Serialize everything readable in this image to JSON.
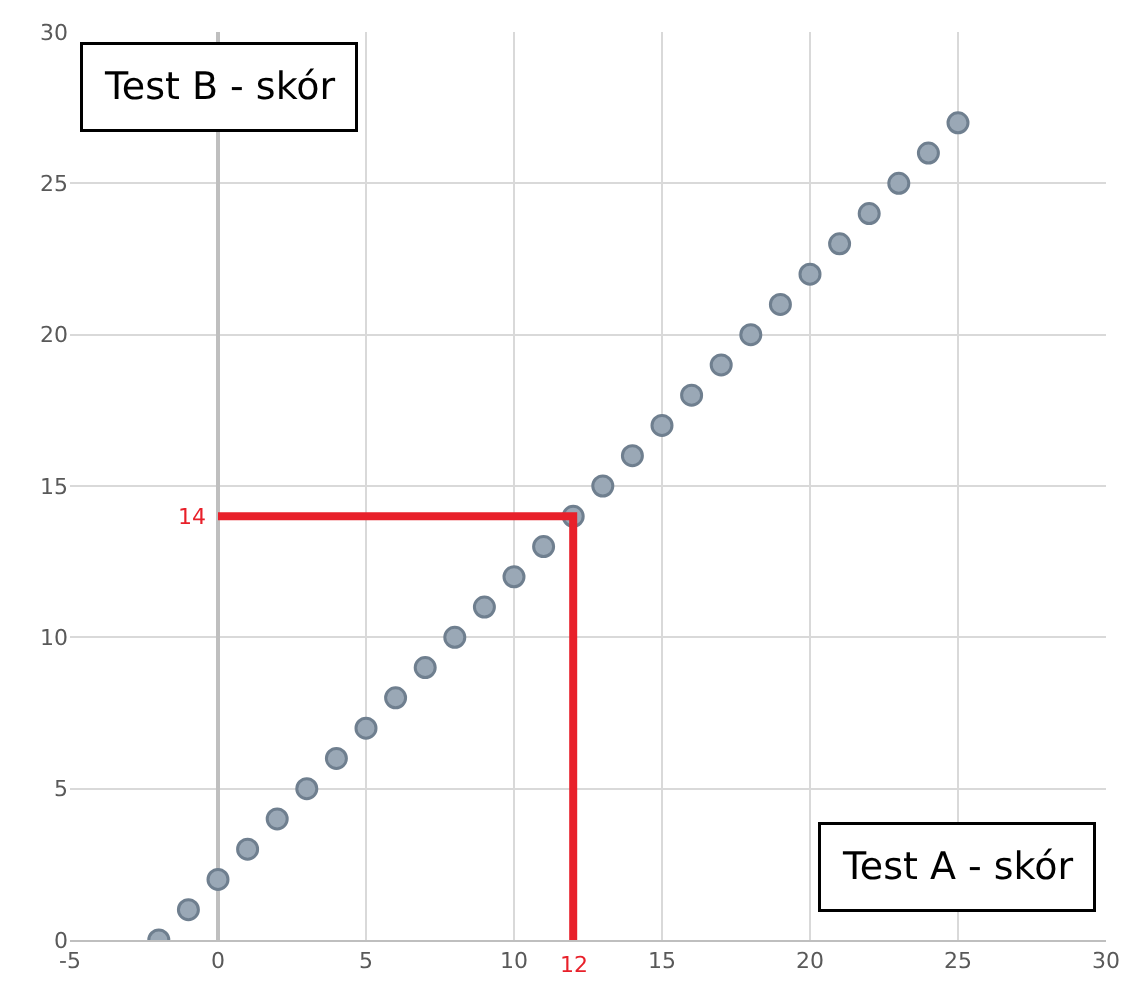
{
  "chart_data": {
    "type": "scatter",
    "xlabel": "Test A - skór",
    "ylabel": "Test B - skór",
    "xlim": [
      -5,
      30
    ],
    "xticks": [
      -5,
      0,
      5,
      10,
      15,
      20,
      25,
      30
    ],
    "ylim": [
      0,
      30
    ],
    "yticks": [
      0,
      5,
      10,
      15,
      20,
      25,
      30
    ],
    "grid": true,
    "legend": false,
    "marker": "circle",
    "series": [
      {
        "color": "#9aa8b6",
        "x": [
          -2,
          -1,
          0,
          1,
          2,
          3,
          4,
          5,
          6,
          7,
          8,
          9,
          10,
          11,
          12,
          13,
          14,
          15,
          16,
          17,
          18,
          19,
          20,
          21,
          22,
          23,
          24,
          25
        ],
        "values": [
          0,
          1,
          2,
          3,
          4,
          5,
          6,
          7,
          8,
          9,
          10,
          11,
          12,
          13,
          14,
          15,
          16,
          17,
          18,
          19,
          20,
          21,
          22,
          23,
          24,
          25,
          26,
          27
        ]
      },
      {
        "type": "line",
        "marker": "none",
        "color": "#e8202a",
        "x": [
          0,
          12,
          12
        ],
        "values": [
          14,
          14,
          0
        ]
      }
    ],
    "annotations": [
      {
        "text": "14",
        "x": 0,
        "y": 14
      },
      {
        "text": "12",
        "x": 12,
        "y": 0
      }
    ]
  }
}
